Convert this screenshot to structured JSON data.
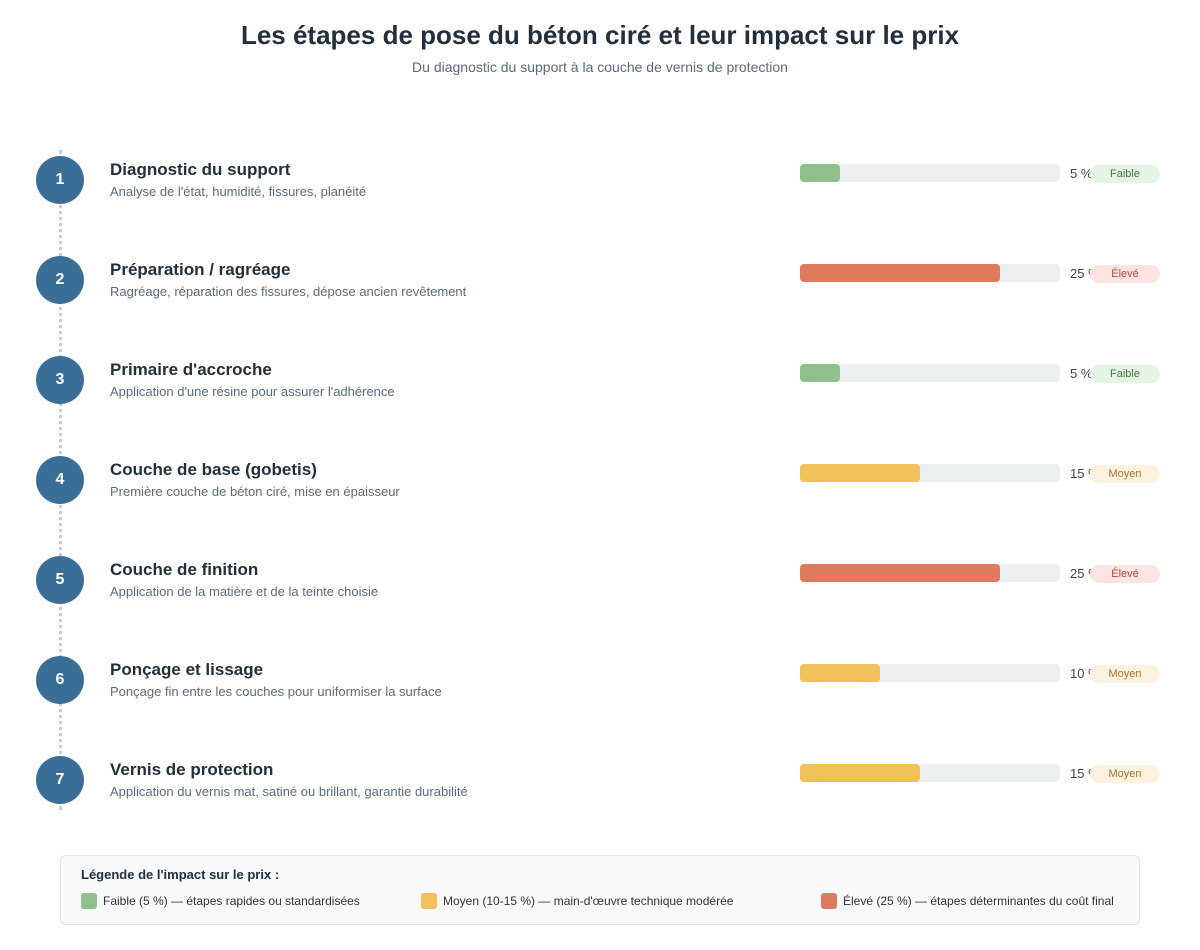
{
  "header": {
    "title": "Les étapes de pose du béton ciré et leur impact sur le prix",
    "subtitle": "Du diagnostic du support à la couche de vernis de protection"
  },
  "colors": {
    "circle": "#3b6e96",
    "low": "#8fbf8a",
    "mid": "#f0c05a",
    "high": "#e07a5f",
    "track": "#edf0f1"
  },
  "steps": [
    {
      "number": "1",
      "title": "Diagnostic du support",
      "description": "Analyse de l'état, humidité, fissures, planéité",
      "percent": 5,
      "percent_label": "5 %",
      "level": "low",
      "badge": "Faible"
    },
    {
      "number": "2",
      "title": "Préparation / ragréage",
      "description": "Ragréage, réparation des fissures, dépose ancien revêtement",
      "percent": 25,
      "percent_label": "25 %",
      "level": "high",
      "badge": "Élevé"
    },
    {
      "number": "3",
      "title": "Primaire d'accroche",
      "description": "Application d'une résine pour assurer l'adhérence",
      "percent": 5,
      "percent_label": "5 %",
      "level": "low",
      "badge": "Faible"
    },
    {
      "number": "4",
      "title": "Couche de base (gobetis)",
      "description": "Première couche de béton ciré, mise en épaisseur",
      "percent": 15,
      "percent_label": "15 %",
      "level": "mid",
      "badge": "Moyen"
    },
    {
      "number": "5",
      "title": "Couche de finition",
      "description": "Application de la matière et de la teinte choisie",
      "percent": 25,
      "percent_label": "25 %",
      "level": "high",
      "badge": "Élevé"
    },
    {
      "number": "6",
      "title": "Ponçage et lissage",
      "description": "Ponçage fin entre les couches pour uniformiser la surface",
      "percent": 10,
      "percent_label": "10 %",
      "level": "mid",
      "badge": "Moyen"
    },
    {
      "number": "7",
      "title": "Vernis de protection",
      "description": "Application du vernis mat, satiné ou brillant, garantie durabilité",
      "percent": 15,
      "percent_label": "15 %",
      "level": "mid",
      "badge": "Moyen"
    }
  ],
  "legend": {
    "title": "Légende de l'impact sur le prix :",
    "items": [
      {
        "level": "low",
        "label": "Faible (5 %) — étapes rapides ou standardisées"
      },
      {
        "level": "mid",
        "label": "Moyen (10-15 %) — main-d'œuvre technique modérée"
      },
      {
        "level": "high",
        "label": "Élevé (25 %) — étapes déterminantes du coût final"
      }
    ]
  }
}
